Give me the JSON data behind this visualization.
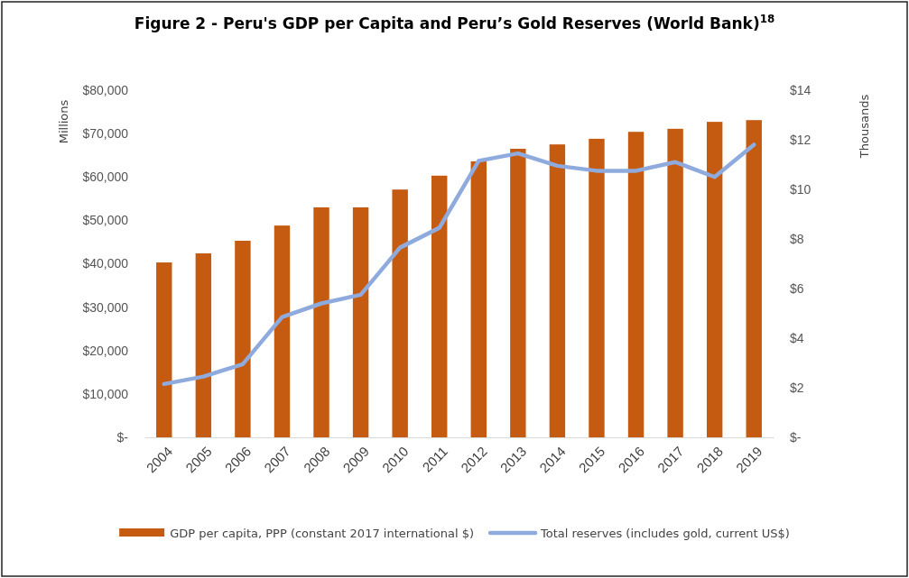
{
  "chart_data": {
    "type": "bar",
    "title": "Figure 2 - Peru's GDP per Capita and Peru’s Gold Reserves (World Bank)$^{18}$",
    "ylabel": "Millions",
    "y2label": "Thousands",
    "categories": [
      "2004",
      "2005",
      "2006",
      "2007",
      "2008",
      "2009",
      "2010",
      "2011",
      "2012",
      "2013",
      "2014",
      "2015",
      "2016",
      "2017",
      "2018",
      "2019"
    ],
    "series": [
      {
        "name": "GDP per capita, PPP (constant 2017 international $)",
        "color": "#c55a11",
        "values": [
          40300,
          42400,
          45300,
          48800,
          53000,
          53000,
          57100,
          60300,
          63600,
          66500,
          67500,
          68800,
          70400,
          71100,
          72700,
          73100
        ]
      },
      {
        "name": "Total reserves (includes gold, current US$)",
        "type": "line",
        "axis": "y2",
        "color": "#8faadc",
        "values": [
          2.15,
          2.45,
          2.95,
          4.85,
          5.4,
          5.75,
          7.65,
          8.45,
          11.15,
          11.45,
          10.95,
          10.75,
          10.75,
          11.1,
          10.5,
          11.8
        ]
      }
    ],
    "ylim": [
      0,
      80000
    ],
    "yticks": [
      {
        "value": 0,
        "label": "$-"
      },
      {
        "value": 10000,
        "label": "$10,000"
      },
      {
        "value": 20000,
        "label": "$20,000"
      },
      {
        "value": 30000,
        "label": "$30,000"
      },
      {
        "value": 40000,
        "label": "$40,000"
      },
      {
        "value": 50000,
        "label": "$50,000"
      },
      {
        "value": 60000,
        "label": "$60,000"
      },
      {
        "value": 70000,
        "label": "$70,000"
      },
      {
        "value": 80000,
        "label": "$80,000"
      }
    ],
    "y2lim": [
      0,
      14
    ],
    "y2ticks": [
      {
        "value": 0,
        "label": "$-"
      },
      {
        "value": 2,
        "label": "$2"
      },
      {
        "value": 4,
        "label": "$4"
      },
      {
        "value": 6,
        "label": "$6"
      },
      {
        "value": 8,
        "label": "$8"
      },
      {
        "value": 10,
        "label": "$10"
      },
      {
        "value": 12,
        "label": "$12"
      },
      {
        "value": 14,
        "label": "$14"
      }
    ],
    "legend": "bottom",
    "grid": false,
    "marker": "none",
    "line_style": "solid"
  }
}
